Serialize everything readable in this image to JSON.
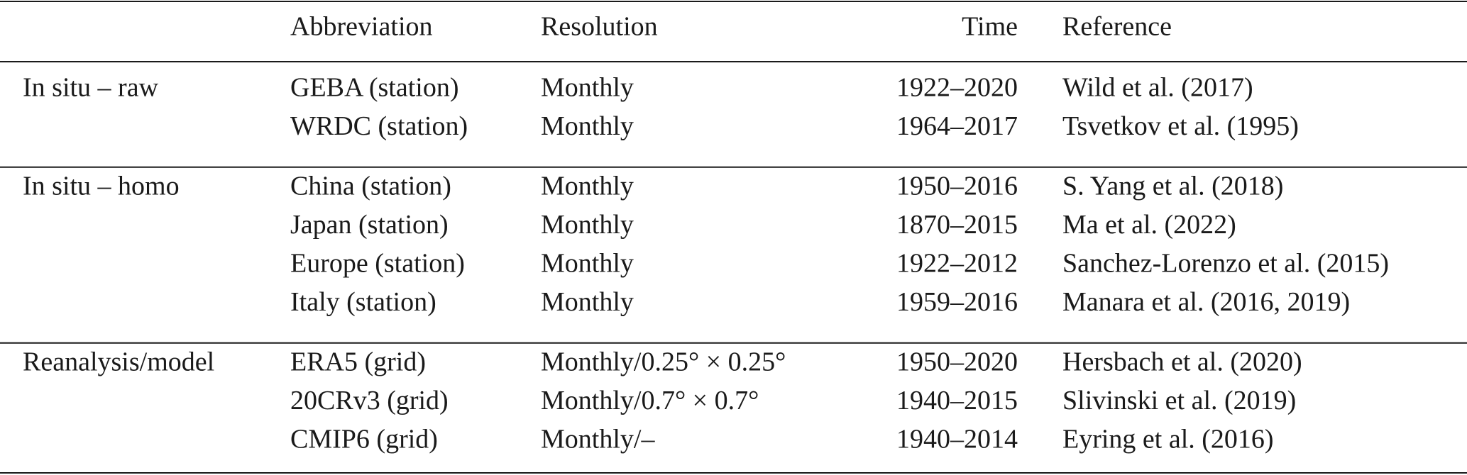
{
  "table": {
    "header": [
      "Abbreviation",
      "Resolution",
      "Time",
      "Reference"
    ],
    "groups": [
      {
        "label": "In situ – raw",
        "rows": [
          [
            "GEBA (station)",
            "Monthly",
            "1922–2020",
            "Wild et al. (2017)"
          ],
          [
            "WRDC (station)",
            "Monthly",
            "1964–2017",
            "Tsvetkov et al. (1995)"
          ]
        ]
      },
      {
        "label": "In situ – homo",
        "rows": [
          [
            "China (station)",
            "Monthly",
            "1950–2016",
            "S. Yang et al. (2018)"
          ],
          [
            "Japan (station)",
            "Monthly",
            "1870–2015",
            "Ma et al. (2022)"
          ],
          [
            "Europe (station)",
            "Monthly",
            "1922–2012",
            "Sanchez-Lorenzo et al. (2015)"
          ],
          [
            "Italy (station)",
            "Monthly",
            "1959–2016",
            "Manara et al. (2016, 2019)"
          ]
        ]
      },
      {
        "label": "Reanalysis/model",
        "rows": [
          [
            "ERA5 (grid)",
            "Monthly/0.25° × 0.25°",
            "1950–2020",
            "Hersbach et al. (2020)"
          ],
          [
            "20CRv3 (grid)",
            "Monthly/0.7° × 0.7°",
            "1940–2015",
            "Slivinski et al. (2019)"
          ],
          [
            "CMIP6 (grid)",
            "Monthly/–",
            "1940–2014",
            "Eyring et al. (2016)"
          ]
        ]
      }
    ]
  }
}
